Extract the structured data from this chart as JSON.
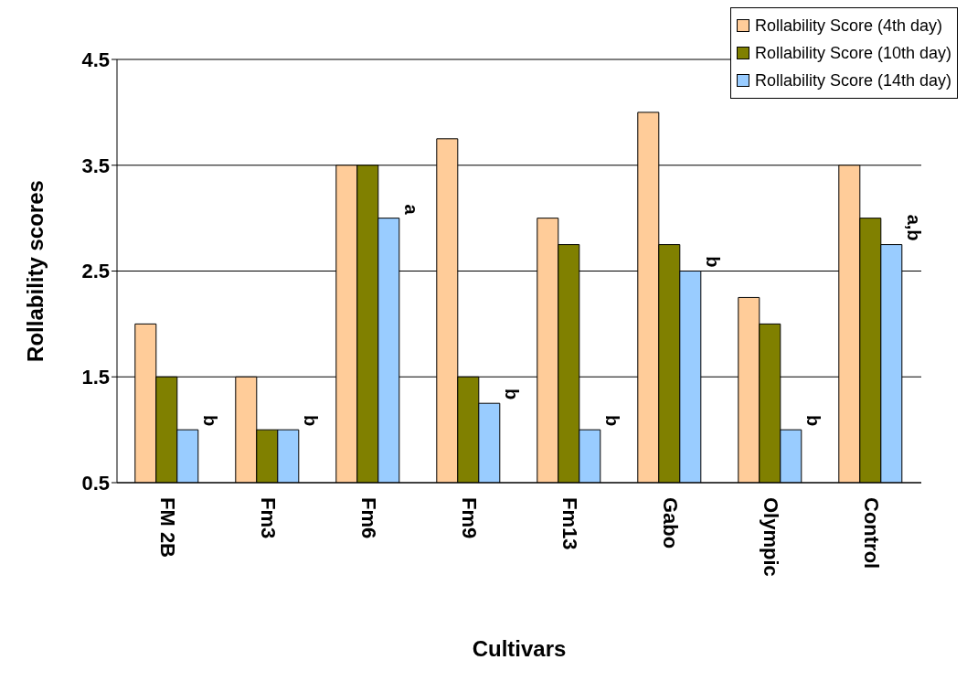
{
  "chart_data": {
    "type": "bar",
    "xlabel": "Cultivars",
    "ylabel": "Rollability scores",
    "categories": [
      "FM 2B",
      "Fm3",
      "Fm6",
      "Fm9",
      "Fm13",
      "Gabo",
      "Olympic",
      "Control"
    ],
    "series": [
      {
        "name": "Rollability Score (4th day)",
        "color": "#ffcc99",
        "values": [
          2,
          1.5,
          3.5,
          3.75,
          3,
          4,
          2.25,
          3.5
        ]
      },
      {
        "name": "Rollability Score (10th day)",
        "color": "#808000",
        "values": [
          1.5,
          1,
          3.5,
          1.5,
          2.75,
          2.75,
          2,
          3
        ]
      },
      {
        "name": "Rollability Score (14th day)",
        "color": "#99ccff",
        "values": [
          1,
          1,
          3,
          1.25,
          1,
          2.5,
          1,
          2.75
        ]
      }
    ],
    "ylim": [
      0.5,
      4.5
    ],
    "yticks": [
      0.5,
      1.5,
      2.5,
      3.5,
      4.5
    ],
    "grid": "y",
    "legend": "top right",
    "annotations": [
      "b",
      "b",
      "a",
      "b",
      "b",
      "b",
      "b",
      "a,b"
    ]
  }
}
